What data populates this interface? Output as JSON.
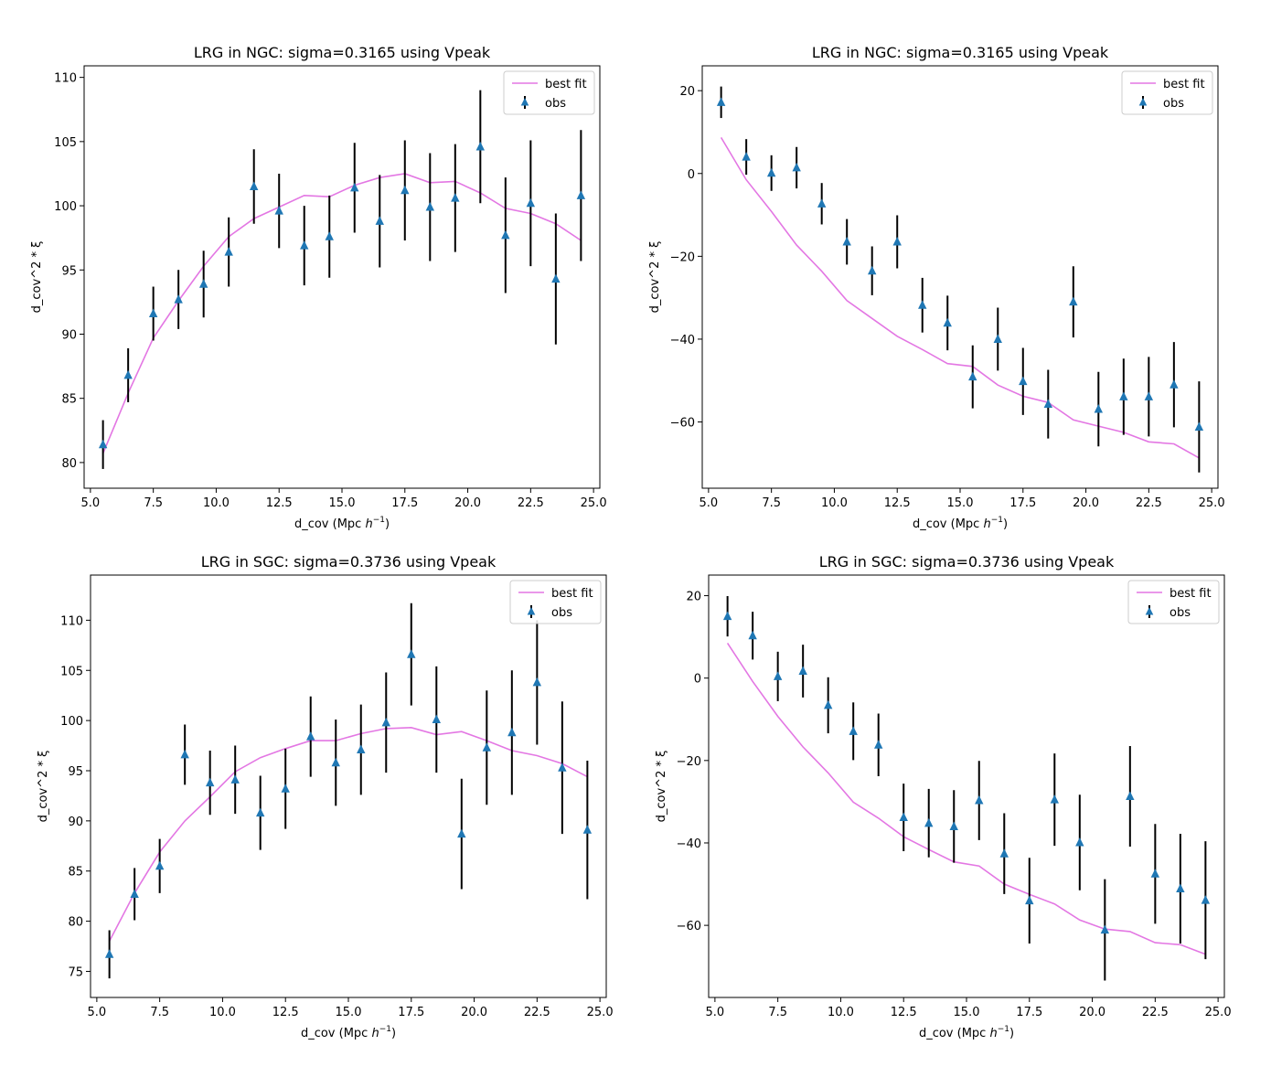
{
  "chart_data": [
    {
      "type": "line",
      "title": "LRG in NGC: sigma=0.3165 using Vpeak",
      "xlabel": "d_cov (Mpc h⁻¹)",
      "xlabel_text": "d_cov (Mpc ",
      "xlabel_h": "h",
      "xlabel_exp": "−1",
      "xlabel_close": ")",
      "ylabel": "d_cov^2 * ξ",
      "xlim": [
        4.75,
        25.25
      ],
      "ylim": [
        78.0,
        110.9
      ],
      "xticks": [
        5.0,
        7.5,
        10.0,
        12.5,
        15.0,
        17.5,
        20.0,
        22.5,
        25.0
      ],
      "xtick_labels": [
        "5.0",
        "7.5",
        "10.0",
        "12.5",
        "15.0",
        "17.5",
        "20.0",
        "22.5",
        "25.0"
      ],
      "yticks": [
        80,
        85,
        90,
        95,
        100,
        105,
        110
      ],
      "ytick_labels": [
        "80",
        "85",
        "90",
        "95",
        "100",
        "105",
        "110"
      ],
      "legend": {
        "placement": "upper-right",
        "entries": [
          "best fit",
          "obs"
        ]
      },
      "series": [
        {
          "name": "best fit",
          "kind": "line",
          "color": "#e377e3",
          "x": [
            5.5,
            6.5,
            7.5,
            8.5,
            9.5,
            10.5,
            11.5,
            12.5,
            13.5,
            14.5,
            15.5,
            16.5,
            17.5,
            18.5,
            19.5,
            20.5,
            21.5,
            22.5,
            23.5,
            24.5
          ],
          "y": [
            80.7,
            85.4,
            89.7,
            92.6,
            95.3,
            97.6,
            99.0,
            99.9,
            100.8,
            100.7,
            101.6,
            102.2,
            102.5,
            101.8,
            101.9,
            101.0,
            99.8,
            99.4,
            98.6,
            97.3
          ]
        },
        {
          "name": "obs",
          "kind": "errorbar",
          "color": "#1f77b4",
          "x": [
            5.5,
            6.5,
            7.5,
            8.5,
            9.5,
            10.5,
            11.5,
            12.5,
            13.5,
            14.5,
            15.5,
            16.5,
            17.5,
            18.5,
            19.5,
            20.5,
            21.5,
            22.5,
            23.5,
            24.5
          ],
          "y": [
            81.4,
            86.8,
            91.6,
            92.7,
            93.9,
            96.4,
            101.5,
            99.6,
            96.9,
            97.6,
            101.4,
            98.8,
            101.2,
            99.9,
            100.6,
            104.6,
            97.7,
            100.2,
            94.3,
            100.8
          ],
          "yerr": [
            1.9,
            2.1,
            2.1,
            2.3,
            2.6,
            2.7,
            2.9,
            2.9,
            3.1,
            3.2,
            3.5,
            3.6,
            3.9,
            4.2,
            4.2,
            4.4,
            4.5,
            4.9,
            5.1,
            5.1
          ]
        }
      ]
    },
    {
      "type": "line",
      "title": "LRG in NGC: sigma=0.3165 using Vpeak",
      "xlabel": "d_cov (Mpc h⁻¹)",
      "xlabel_text": "d_cov (Mpc ",
      "xlabel_h": "h",
      "xlabel_exp": "−1",
      "xlabel_close": ")",
      "ylabel": "d_cov^2 * ξ",
      "xlim": [
        4.75,
        25.25
      ],
      "ylim": [
        -76.0,
        26.0
      ],
      "xticks": [
        5.0,
        7.5,
        10.0,
        12.5,
        15.0,
        17.5,
        20.0,
        22.5,
        25.0
      ],
      "xtick_labels": [
        "5.0",
        "7.5",
        "10.0",
        "12.5",
        "15.0",
        "17.5",
        "20.0",
        "22.5",
        "25.0"
      ],
      "yticks": [
        -60,
        -40,
        -20,
        0,
        20
      ],
      "ytick_labels": [
        "−60",
        "−40",
        "−20",
        "0",
        "20"
      ],
      "legend": {
        "placement": "upper-right",
        "entries": [
          "best fit",
          "obs"
        ]
      },
      "series": [
        {
          "name": "best fit",
          "kind": "line",
          "color": "#e377e3",
          "x": [
            5.5,
            6.5,
            7.5,
            8.5,
            9.5,
            10.5,
            11.5,
            12.5,
            13.5,
            14.5,
            15.5,
            16.5,
            17.5,
            18.5,
            19.5,
            20.5,
            21.5,
            22.5,
            23.5,
            24.5
          ],
          "y": [
            8.7,
            -1.5,
            -9.2,
            -17.3,
            -23.6,
            -30.7,
            -35.0,
            -39.3,
            -42.5,
            -45.9,
            -46.6,
            -51.1,
            -53.8,
            -55.3,
            -59.5,
            -61.0,
            -62.5,
            -64.8,
            -65.3,
            -68.7
          ]
        },
        {
          "name": "obs",
          "kind": "errorbar",
          "color": "#1f77b4",
          "x": [
            5.5,
            6.5,
            7.5,
            8.5,
            9.5,
            10.5,
            11.5,
            12.5,
            13.5,
            14.5,
            15.5,
            16.5,
            17.5,
            18.5,
            19.5,
            20.5,
            21.5,
            22.5,
            23.5,
            24.5
          ],
          "y": [
            17.2,
            4.0,
            0.1,
            1.4,
            -7.3,
            -16.5,
            -23.5,
            -16.5,
            -31.8,
            -36.1,
            -49.1,
            -40.0,
            -50.2,
            -55.7,
            -31.0,
            -56.9,
            -53.9,
            -53.9,
            -51.0,
            -61.2
          ],
          "yerr": [
            3.8,
            4.3,
            4.3,
            5.0,
            5.0,
            5.5,
            5.9,
            6.4,
            6.6,
            6.6,
            7.6,
            7.6,
            8.1,
            8.3,
            8.6,
            9.0,
            9.2,
            9.6,
            10.3,
            11.0
          ]
        }
      ]
    },
    {
      "type": "line",
      "title": "LRG in SGC: sigma=0.3736 using Vpeak",
      "xlabel": "d_cov (Mpc h⁻¹)",
      "xlabel_text": "d_cov (Mpc ",
      "xlabel_h": "h",
      "xlabel_exp": "−1",
      "xlabel_close": ")",
      "ylabel": "d_cov^2 * ξ",
      "xlim": [
        4.75,
        25.25
      ],
      "ylim": [
        72.4,
        114.5
      ],
      "xticks": [
        5.0,
        7.5,
        10.0,
        12.5,
        15.0,
        17.5,
        20.0,
        22.5,
        25.0
      ],
      "xtick_labels": [
        "5.0",
        "7.5",
        "10.0",
        "12.5",
        "15.0",
        "17.5",
        "20.0",
        "22.5",
        "25.0"
      ],
      "yticks": [
        75,
        80,
        85,
        90,
        95,
        100,
        105,
        110
      ],
      "ytick_labels": [
        "75",
        "80",
        "85",
        "90",
        "95",
        "100",
        "105",
        "110"
      ],
      "legend": {
        "placement": "upper-right",
        "entries": [
          "best fit",
          "obs"
        ]
      },
      "series": [
        {
          "name": "best fit",
          "kind": "line",
          "color": "#e377e3",
          "x": [
            5.5,
            6.5,
            7.5,
            8.5,
            9.5,
            10.5,
            11.5,
            12.5,
            13.5,
            14.5,
            15.5,
            16.5,
            17.5,
            18.5,
            19.5,
            20.5,
            21.5,
            22.5,
            23.5,
            24.5
          ],
          "y": [
            78.0,
            82.8,
            86.9,
            90.0,
            92.4,
            94.9,
            96.3,
            97.2,
            98.0,
            98.0,
            98.7,
            99.2,
            99.3,
            98.6,
            98.9,
            98.0,
            97.0,
            96.5,
            95.7,
            94.4
          ]
        },
        {
          "name": "obs",
          "kind": "errorbar",
          "color": "#1f77b4",
          "x": [
            5.5,
            6.5,
            7.5,
            8.5,
            9.5,
            10.5,
            11.5,
            12.5,
            13.5,
            14.5,
            15.5,
            16.5,
            17.5,
            18.5,
            19.5,
            20.5,
            21.5,
            22.5,
            23.5,
            24.5
          ],
          "y": [
            76.7,
            82.7,
            85.5,
            96.6,
            93.8,
            94.1,
            90.8,
            93.2,
            98.4,
            95.8,
            97.1,
            99.8,
            106.6,
            100.1,
            88.7,
            97.3,
            98.8,
            103.8,
            95.3,
            89.1
          ],
          "yerr": [
            2.4,
            2.6,
            2.7,
            3.0,
            3.2,
            3.4,
            3.7,
            4.0,
            4.0,
            4.3,
            4.5,
            5.0,
            5.1,
            5.3,
            5.5,
            5.7,
            6.2,
            6.2,
            6.6,
            6.9
          ]
        }
      ]
    },
    {
      "type": "line",
      "title": "LRG in SGC: sigma=0.3736 using Vpeak",
      "xlabel": "d_cov (Mpc h⁻¹)",
      "xlabel_text": "d_cov (Mpc ",
      "xlabel_h": "h",
      "xlabel_exp": "−1",
      "xlabel_close": ")",
      "ylabel": "d_cov^2 * ξ",
      "xlim": [
        4.75,
        25.25
      ],
      "ylim": [
        -77.5,
        25.0
      ],
      "xticks": [
        5.0,
        7.5,
        10.0,
        12.5,
        15.0,
        17.5,
        20.0,
        22.5,
        25.0
      ],
      "xtick_labels": [
        "5.0",
        "7.5",
        "10.0",
        "12.5",
        "15.0",
        "17.5",
        "20.0",
        "22.5",
        "25.0"
      ],
      "yticks": [
        -60,
        -40,
        -20,
        0,
        20
      ],
      "ytick_labels": [
        "−60",
        "−40",
        "−20",
        "0",
        "20"
      ],
      "legend": {
        "placement": "upper-right",
        "entries": [
          "best fit",
          "obs"
        ]
      },
      "series": [
        {
          "name": "best fit",
          "kind": "line",
          "color": "#e377e3",
          "x": [
            5.5,
            6.5,
            7.5,
            8.5,
            9.5,
            10.5,
            11.5,
            12.5,
            13.5,
            14.5,
            15.5,
            16.5,
            17.5,
            18.5,
            19.5,
            20.5,
            21.5,
            22.5,
            23.5,
            24.5
          ],
          "y": [
            8.5,
            -0.8,
            -9.3,
            -16.7,
            -23.0,
            -30.1,
            -34.0,
            -38.5,
            -41.6,
            -44.6,
            -45.6,
            -50.0,
            -52.5,
            -54.8,
            -58.7,
            -60.9,
            -61.5,
            -64.2,
            -64.7,
            -67.0
          ]
        },
        {
          "name": "obs",
          "kind": "errorbar",
          "color": "#1f77b4",
          "x": [
            5.5,
            6.5,
            7.5,
            8.5,
            9.5,
            10.5,
            11.5,
            12.5,
            13.5,
            14.5,
            15.5,
            16.5,
            17.5,
            18.5,
            19.5,
            20.5,
            21.5,
            22.5,
            23.5,
            24.5
          ],
          "y": [
            15.0,
            10.3,
            0.4,
            1.7,
            -6.6,
            -12.9,
            -16.2,
            -33.8,
            -35.2,
            -36.0,
            -29.7,
            -42.6,
            -54.0,
            -29.5,
            -39.9,
            -61.1,
            -28.7,
            -47.5,
            -51.1,
            -53.9
          ],
          "yerr": [
            4.9,
            5.8,
            6.0,
            6.4,
            6.8,
            7.0,
            7.6,
            8.2,
            8.3,
            8.8,
            9.6,
            9.8,
            10.4,
            11.2,
            11.6,
            12.3,
            12.2,
            12.1,
            13.3,
            14.3
          ]
        }
      ]
    }
  ]
}
